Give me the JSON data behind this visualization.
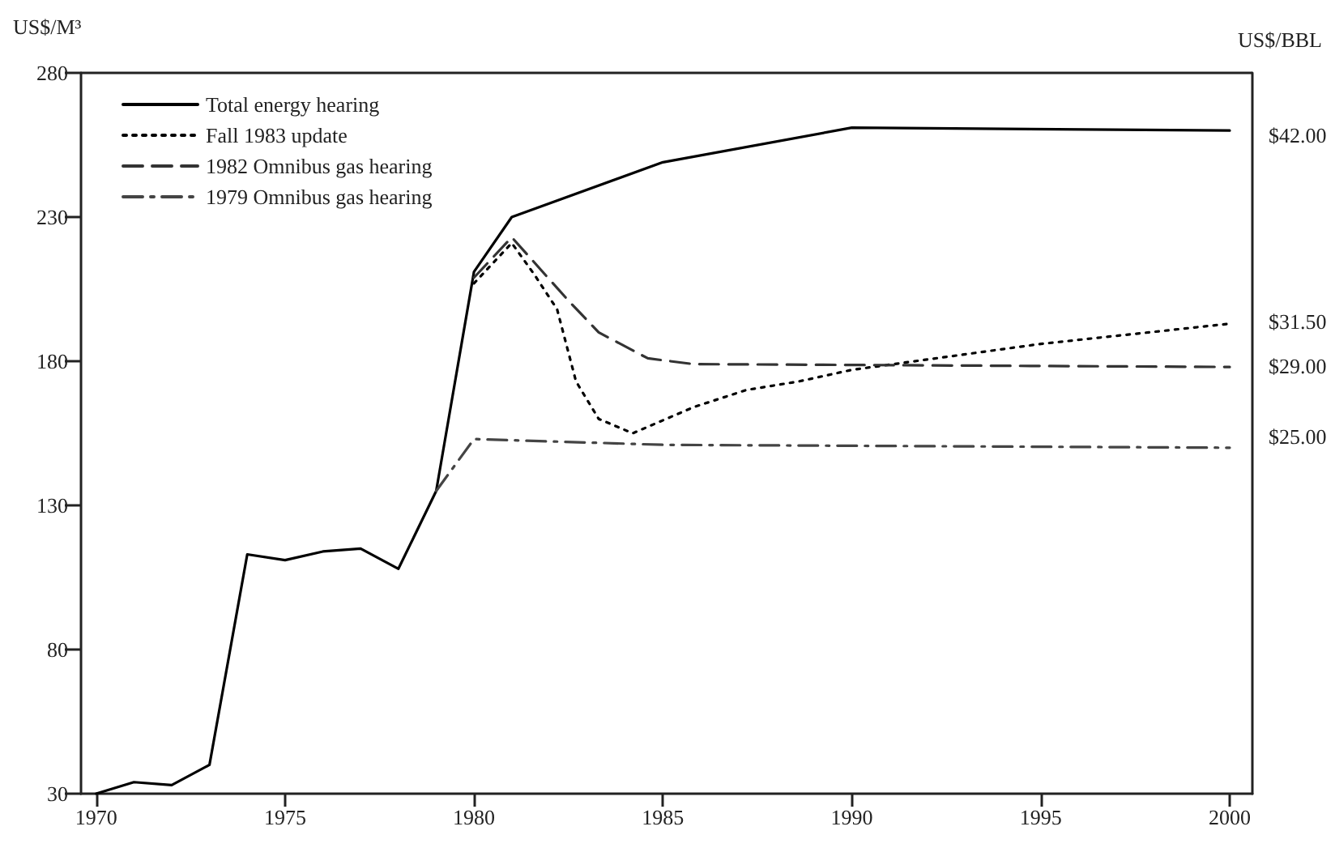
{
  "chart_data": {
    "type": "line",
    "ylabel": "US$/M³",
    "y2label": "US$/BBL",
    "xlim": [
      1969.6,
      2000.6
    ],
    "xticks": [
      1970,
      1975,
      1980,
      1985,
      1990,
      1995,
      2000
    ],
    "ylim": [
      30,
      280
    ],
    "yticks": [
      30,
      80,
      130,
      180,
      230,
      280
    ],
    "grid": false,
    "legend": "top left",
    "marker": "none",
    "series": [
      {
        "name": "Total energy hearing",
        "color": "#000000",
        "line_style": "solid",
        "x": [
          1970,
          1971,
          1972,
          1973,
          1974,
          1975,
          1976,
          1977,
          1978,
          1979,
          1980,
          1981,
          1985,
          1990,
          2000
        ],
        "values": [
          30,
          34,
          33,
          40,
          113,
          111,
          114,
          115,
          108,
          135,
          211,
          230,
          249,
          261,
          260
        ]
      },
      {
        "name": "Fall 1983 update",
        "color": "#000000",
        "line_style": "dotted",
        "x": [
          1980,
          1981,
          1981.6,
          1982.2,
          1982.7,
          1983.3,
          1984.2,
          1985.8,
          1987.2,
          1988.6,
          1990,
          1995,
          2000
        ],
        "values": [
          207,
          221,
          210,
          198,
          173,
          160,
          155,
          164,
          170,
          173,
          177,
          186,
          193
        ]
      },
      {
        "name": "1982 Omnibus gas hearing",
        "color": "#333333",
        "line_style": "dashed",
        "x": [
          1980,
          1981,
          1982.5,
          1983.3,
          1984.6,
          1985.8,
          2000
        ],
        "values": [
          209,
          223,
          201,
          190,
          181,
          179,
          178
        ]
      },
      {
        "name": "1979 Omnibus gas hearing",
        "color": "#444444",
        "line_style": "dashdot",
        "x": [
          1979,
          1980,
          1985,
          2000
        ],
        "values": [
          135,
          153,
          151,
          150
        ]
      }
    ],
    "y2lim": [
      4.9,
      45.5
    ],
    "y2ticks": [
      {
        "value": 25,
        "label": "$25.00"
      },
      {
        "value": 29,
        "label": "$29.00"
      },
      {
        "value": 31.5,
        "label": "$31.50"
      },
      {
        "value": 42,
        "label": "$42.00"
      }
    ]
  }
}
